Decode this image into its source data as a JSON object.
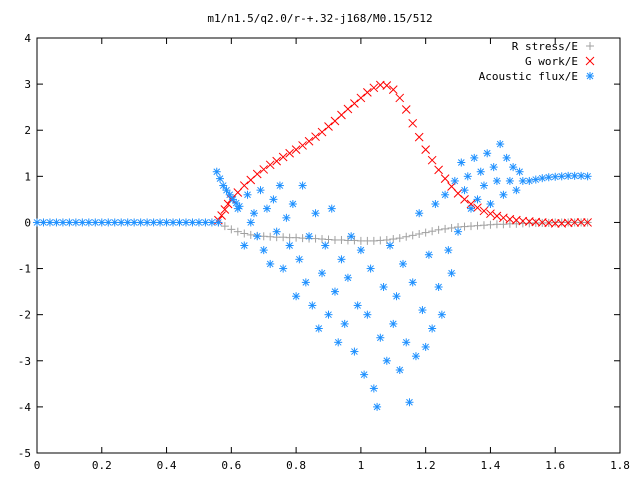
{
  "chart_data": {
    "type": "scatter",
    "title": "m1/n1.5/q2.0/r-+.32-j168/M0.15/512",
    "xlabel": "",
    "ylabel": "",
    "xlim": [
      0,
      1.8
    ],
    "ylim": [
      -5,
      4
    ],
    "x_ticks": [
      "0",
      "0.2",
      "0.4",
      "0.6",
      "0.8",
      "1",
      "1.2",
      "1.4",
      "1.6",
      "1.8"
    ],
    "y_ticks": [
      "4",
      "3",
      "2",
      "1",
      "0",
      "-1",
      "-2",
      "-3",
      "-4",
      "-5"
    ],
    "grid": false,
    "legend_position": "top-right",
    "series": [
      {
        "name": "R stress/E",
        "marker": "plus",
        "color": "#a0a0a0",
        "points": [
          [
            0.56,
            0.0
          ],
          [
            0.58,
            -0.08
          ],
          [
            0.6,
            -0.15
          ],
          [
            0.62,
            -0.2
          ],
          [
            0.64,
            -0.24
          ],
          [
            0.66,
            -0.27
          ],
          [
            0.68,
            -0.29
          ],
          [
            0.7,
            -0.3
          ],
          [
            0.72,
            -0.31
          ],
          [
            0.74,
            -0.32
          ],
          [
            0.76,
            -0.32
          ],
          [
            0.78,
            -0.33
          ],
          [
            0.8,
            -0.33
          ],
          [
            0.82,
            -0.34
          ],
          [
            0.84,
            -0.35
          ],
          [
            0.86,
            -0.35
          ],
          [
            0.88,
            -0.36
          ],
          [
            0.9,
            -0.37
          ],
          [
            0.92,
            -0.38
          ],
          [
            0.94,
            -0.38
          ],
          [
            0.96,
            -0.39
          ],
          [
            0.98,
            -0.39
          ],
          [
            1.0,
            -0.4
          ],
          [
            1.02,
            -0.4
          ],
          [
            1.04,
            -0.4
          ],
          [
            1.06,
            -0.39
          ],
          [
            1.08,
            -0.38
          ],
          [
            1.1,
            -0.36
          ],
          [
            1.12,
            -0.34
          ],
          [
            1.14,
            -0.31
          ],
          [
            1.16,
            -0.28
          ],
          [
            1.18,
            -0.25
          ],
          [
            1.2,
            -0.22
          ],
          [
            1.22,
            -0.19
          ],
          [
            1.24,
            -0.16
          ],
          [
            1.26,
            -0.14
          ],
          [
            1.28,
            -0.12
          ],
          [
            1.3,
            -0.1
          ],
          [
            1.32,
            -0.09
          ],
          [
            1.34,
            -0.08
          ],
          [
            1.36,
            -0.07
          ],
          [
            1.38,
            -0.06
          ],
          [
            1.4,
            -0.05
          ],
          [
            1.42,
            -0.04
          ],
          [
            1.44,
            -0.04
          ],
          [
            1.46,
            -0.03
          ],
          [
            1.48,
            -0.03
          ],
          [
            1.5,
            -0.02
          ],
          [
            1.52,
            -0.02
          ],
          [
            1.54,
            -0.01
          ],
          [
            1.56,
            -0.01
          ],
          [
            1.58,
            -0.01
          ],
          [
            1.6,
            0.0
          ],
          [
            1.62,
            0.0
          ],
          [
            1.64,
            0.0
          ],
          [
            1.66,
            0.0
          ],
          [
            1.68,
            0.0
          ],
          [
            1.7,
            0.0
          ]
        ]
      },
      {
        "name": "G work/E",
        "marker": "cross",
        "color": "#ff0000",
        "points": [
          [
            0.56,
            0.05
          ],
          [
            0.57,
            0.15
          ],
          [
            0.58,
            0.28
          ],
          [
            0.59,
            0.4
          ],
          [
            0.6,
            0.5
          ],
          [
            0.62,
            0.65
          ],
          [
            0.64,
            0.8
          ],
          [
            0.66,
            0.92
          ],
          [
            0.68,
            1.05
          ],
          [
            0.7,
            1.15
          ],
          [
            0.72,
            1.25
          ],
          [
            0.74,
            1.33
          ],
          [
            0.76,
            1.42
          ],
          [
            0.78,
            1.5
          ],
          [
            0.8,
            1.58
          ],
          [
            0.82,
            1.67
          ],
          [
            0.84,
            1.76
          ],
          [
            0.86,
            1.86
          ],
          [
            0.88,
            1.96
          ],
          [
            0.9,
            2.08
          ],
          [
            0.92,
            2.2
          ],
          [
            0.94,
            2.33
          ],
          [
            0.96,
            2.46
          ],
          [
            0.98,
            2.58
          ],
          [
            1.0,
            2.7
          ],
          [
            1.02,
            2.82
          ],
          [
            1.04,
            2.92
          ],
          [
            1.06,
            2.98
          ],
          [
            1.08,
            2.97
          ],
          [
            1.1,
            2.88
          ],
          [
            1.12,
            2.7
          ],
          [
            1.14,
            2.45
          ],
          [
            1.16,
            2.15
          ],
          [
            1.18,
            1.85
          ],
          [
            1.2,
            1.58
          ],
          [
            1.22,
            1.35
          ],
          [
            1.24,
            1.14
          ],
          [
            1.26,
            0.95
          ],
          [
            1.28,
            0.78
          ],
          [
            1.3,
            0.63
          ],
          [
            1.32,
            0.5
          ],
          [
            1.34,
            0.4
          ],
          [
            1.36,
            0.32
          ],
          [
            1.38,
            0.25
          ],
          [
            1.4,
            0.19
          ],
          [
            1.42,
            0.14
          ],
          [
            1.44,
            0.1
          ],
          [
            1.46,
            0.07
          ],
          [
            1.48,
            0.05
          ],
          [
            1.5,
            0.03
          ],
          [
            1.52,
            0.02
          ],
          [
            1.54,
            0.01
          ],
          [
            1.56,
            0.0
          ],
          [
            1.58,
            -0.01
          ],
          [
            1.6,
            -0.02
          ],
          [
            1.62,
            -0.02
          ],
          [
            1.64,
            -0.01
          ],
          [
            1.66,
            0.0
          ],
          [
            1.68,
            0.0
          ],
          [
            1.7,
            0.0
          ]
        ]
      },
      {
        "name": "Acoustic flux/E",
        "marker": "star",
        "color": "#1e90ff",
        "points": [
          [
            0.0,
            0.0
          ],
          [
            0.02,
            0.0
          ],
          [
            0.04,
            0.0
          ],
          [
            0.06,
            0.0
          ],
          [
            0.08,
            0.0
          ],
          [
            0.1,
            0.0
          ],
          [
            0.12,
            0.0
          ],
          [
            0.14,
            0.0
          ],
          [
            0.16,
            0.0
          ],
          [
            0.18,
            0.0
          ],
          [
            0.2,
            0.0
          ],
          [
            0.22,
            0.0
          ],
          [
            0.24,
            0.0
          ],
          [
            0.26,
            0.0
          ],
          [
            0.28,
            0.0
          ],
          [
            0.3,
            0.0
          ],
          [
            0.32,
            0.0
          ],
          [
            0.34,
            0.0
          ],
          [
            0.36,
            0.0
          ],
          [
            0.38,
            0.0
          ],
          [
            0.4,
            0.0
          ],
          [
            0.42,
            0.0
          ],
          [
            0.44,
            0.0
          ],
          [
            0.46,
            0.0
          ],
          [
            0.48,
            0.0
          ],
          [
            0.5,
            0.0
          ],
          [
            0.52,
            0.0
          ],
          [
            0.54,
            0.0
          ],
          [
            0.56,
            0.0
          ],
          [
            0.555,
            1.1
          ],
          [
            0.565,
            0.95
          ],
          [
            0.575,
            0.8
          ],
          [
            0.585,
            0.7
          ],
          [
            0.595,
            0.6
          ],
          [
            0.605,
            0.5
          ],
          [
            0.615,
            0.42
          ],
          [
            0.625,
            0.35
          ],
          [
            0.62,
            0.3
          ],
          [
            0.64,
            -0.5
          ],
          [
            0.65,
            0.6
          ],
          [
            0.66,
            0.0
          ],
          [
            0.67,
            0.2
          ],
          [
            0.68,
            -0.3
          ],
          [
            0.69,
            0.7
          ],
          [
            0.7,
            -0.6
          ],
          [
            0.71,
            0.3
          ],
          [
            0.72,
            -0.9
          ],
          [
            0.73,
            0.5
          ],
          [
            0.74,
            -0.2
          ],
          [
            0.75,
            0.8
          ],
          [
            0.76,
            -1.0
          ],
          [
            0.77,
            0.1
          ],
          [
            0.78,
            -0.5
          ],
          [
            0.79,
            0.4
          ],
          [
            0.8,
            -1.6
          ],
          [
            0.81,
            -0.8
          ],
          [
            0.82,
            0.8
          ],
          [
            0.83,
            -1.3
          ],
          [
            0.84,
            -0.3
          ],
          [
            0.85,
            -1.8
          ],
          [
            0.86,
            0.2
          ],
          [
            0.87,
            -2.3
          ],
          [
            0.88,
            -1.1
          ],
          [
            0.89,
            -0.5
          ],
          [
            0.9,
            -2.0
          ],
          [
            0.91,
            0.3
          ],
          [
            0.92,
            -1.5
          ],
          [
            0.93,
            -2.6
          ],
          [
            0.94,
            -0.8
          ],
          [
            0.95,
            -2.2
          ],
          [
            0.96,
            -1.2
          ],
          [
            0.97,
            -0.3
          ],
          [
            0.98,
            -2.8
          ],
          [
            0.99,
            -1.8
          ],
          [
            1.0,
            -0.6
          ],
          [
            1.01,
            -3.3
          ],
          [
            1.02,
            -2.0
          ],
          [
            1.03,
            -1.0
          ],
          [
            1.04,
            -3.6
          ],
          [
            1.05,
            -4.0
          ],
          [
            1.06,
            -2.5
          ],
          [
            1.07,
            -1.4
          ],
          [
            1.08,
            -3.0
          ],
          [
            1.09,
            -0.5
          ],
          [
            1.1,
            -2.2
          ],
          [
            1.11,
            -1.6
          ],
          [
            1.12,
            -3.2
          ],
          [
            1.13,
            -0.9
          ],
          [
            1.14,
            -2.6
          ],
          [
            1.15,
            -3.9
          ],
          [
            1.16,
            -1.3
          ],
          [
            1.17,
            -2.9
          ],
          [
            1.18,
            0.2
          ],
          [
            1.19,
            -1.9
          ],
          [
            1.2,
            -2.7
          ],
          [
            1.21,
            -0.7
          ],
          [
            1.22,
            -2.3
          ],
          [
            1.23,
            0.4
          ],
          [
            1.24,
            -1.4
          ],
          [
            1.25,
            -2.0
          ],
          [
            1.26,
            0.6
          ],
          [
            1.27,
            -0.6
          ],
          [
            1.28,
            -1.1
          ],
          [
            1.29,
            0.9
          ],
          [
            1.3,
            -0.2
          ],
          [
            1.31,
            1.3
          ],
          [
            1.32,
            0.7
          ],
          [
            1.33,
            1.0
          ],
          [
            1.34,
            0.3
          ],
          [
            1.35,
            1.4
          ],
          [
            1.36,
            0.5
          ],
          [
            1.37,
            1.1
          ],
          [
            1.38,
            0.8
          ],
          [
            1.39,
            1.5
          ],
          [
            1.4,
            0.4
          ],
          [
            1.41,
            1.2
          ],
          [
            1.42,
            0.9
          ],
          [
            1.43,
            1.7
          ],
          [
            1.44,
            0.6
          ],
          [
            1.45,
            1.4
          ],
          [
            1.46,
            0.9
          ],
          [
            1.47,
            1.2
          ],
          [
            1.48,
            0.7
          ],
          [
            1.49,
            1.1
          ],
          [
            1.5,
            0.9
          ],
          [
            1.52,
            0.9
          ],
          [
            1.54,
            0.93
          ],
          [
            1.56,
            0.96
          ],
          [
            1.58,
            0.98
          ],
          [
            1.6,
            0.99
          ],
          [
            1.62,
            1.0
          ],
          [
            1.64,
            1.01
          ],
          [
            1.66,
            1.01
          ],
          [
            1.68,
            1.01
          ],
          [
            1.7,
            1.0
          ]
        ]
      }
    ]
  }
}
